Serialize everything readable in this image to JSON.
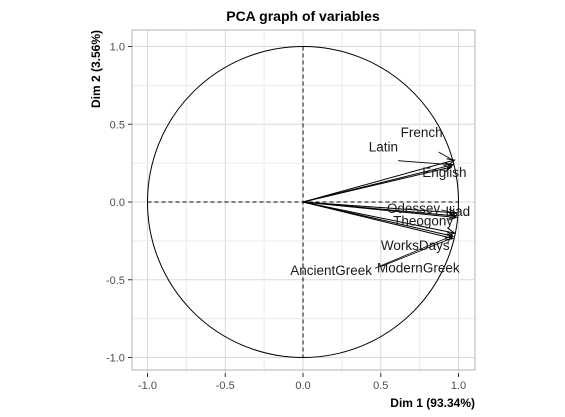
{
  "chart_data": {
    "type": "scatter",
    "subtype": "pca-correlation-circle",
    "title": "PCA graph of variables",
    "xlabel": "Dim 1 (93.34%)",
    "ylabel": "Dim 2 (3.56%)",
    "xlim": [
      -1.1,
      1.1
    ],
    "ylim": [
      -1.1,
      1.1
    ],
    "xticks": [
      "-1.0",
      "-0.5",
      "0.0",
      "0.5",
      "1.0"
    ],
    "yticks": [
      "-1.0",
      "-0.5",
      "0.0",
      "0.5",
      "1.0"
    ],
    "grid": true,
    "unit_circle": true,
    "variables": [
      {
        "name": "French",
        "x": 0.975,
        "y": 0.27
      },
      {
        "name": "Latin",
        "x": 0.965,
        "y": 0.24
      },
      {
        "name": "English",
        "x": 0.955,
        "y": 0.225
      },
      {
        "name": "Odessey",
        "x": 0.985,
        "y": -0.07
      },
      {
        "name": "Iliad",
        "x": 0.985,
        "y": -0.09
      },
      {
        "name": "Theogony",
        "x": 0.985,
        "y": -0.1
      },
      {
        "name": "WorksDays",
        "x": 0.975,
        "y": -0.2
      },
      {
        "name": "AncientGreek",
        "x": 0.965,
        "y": -0.22
      },
      {
        "name": "ModernGreek",
        "x": 0.965,
        "y": -0.235
      }
    ]
  }
}
